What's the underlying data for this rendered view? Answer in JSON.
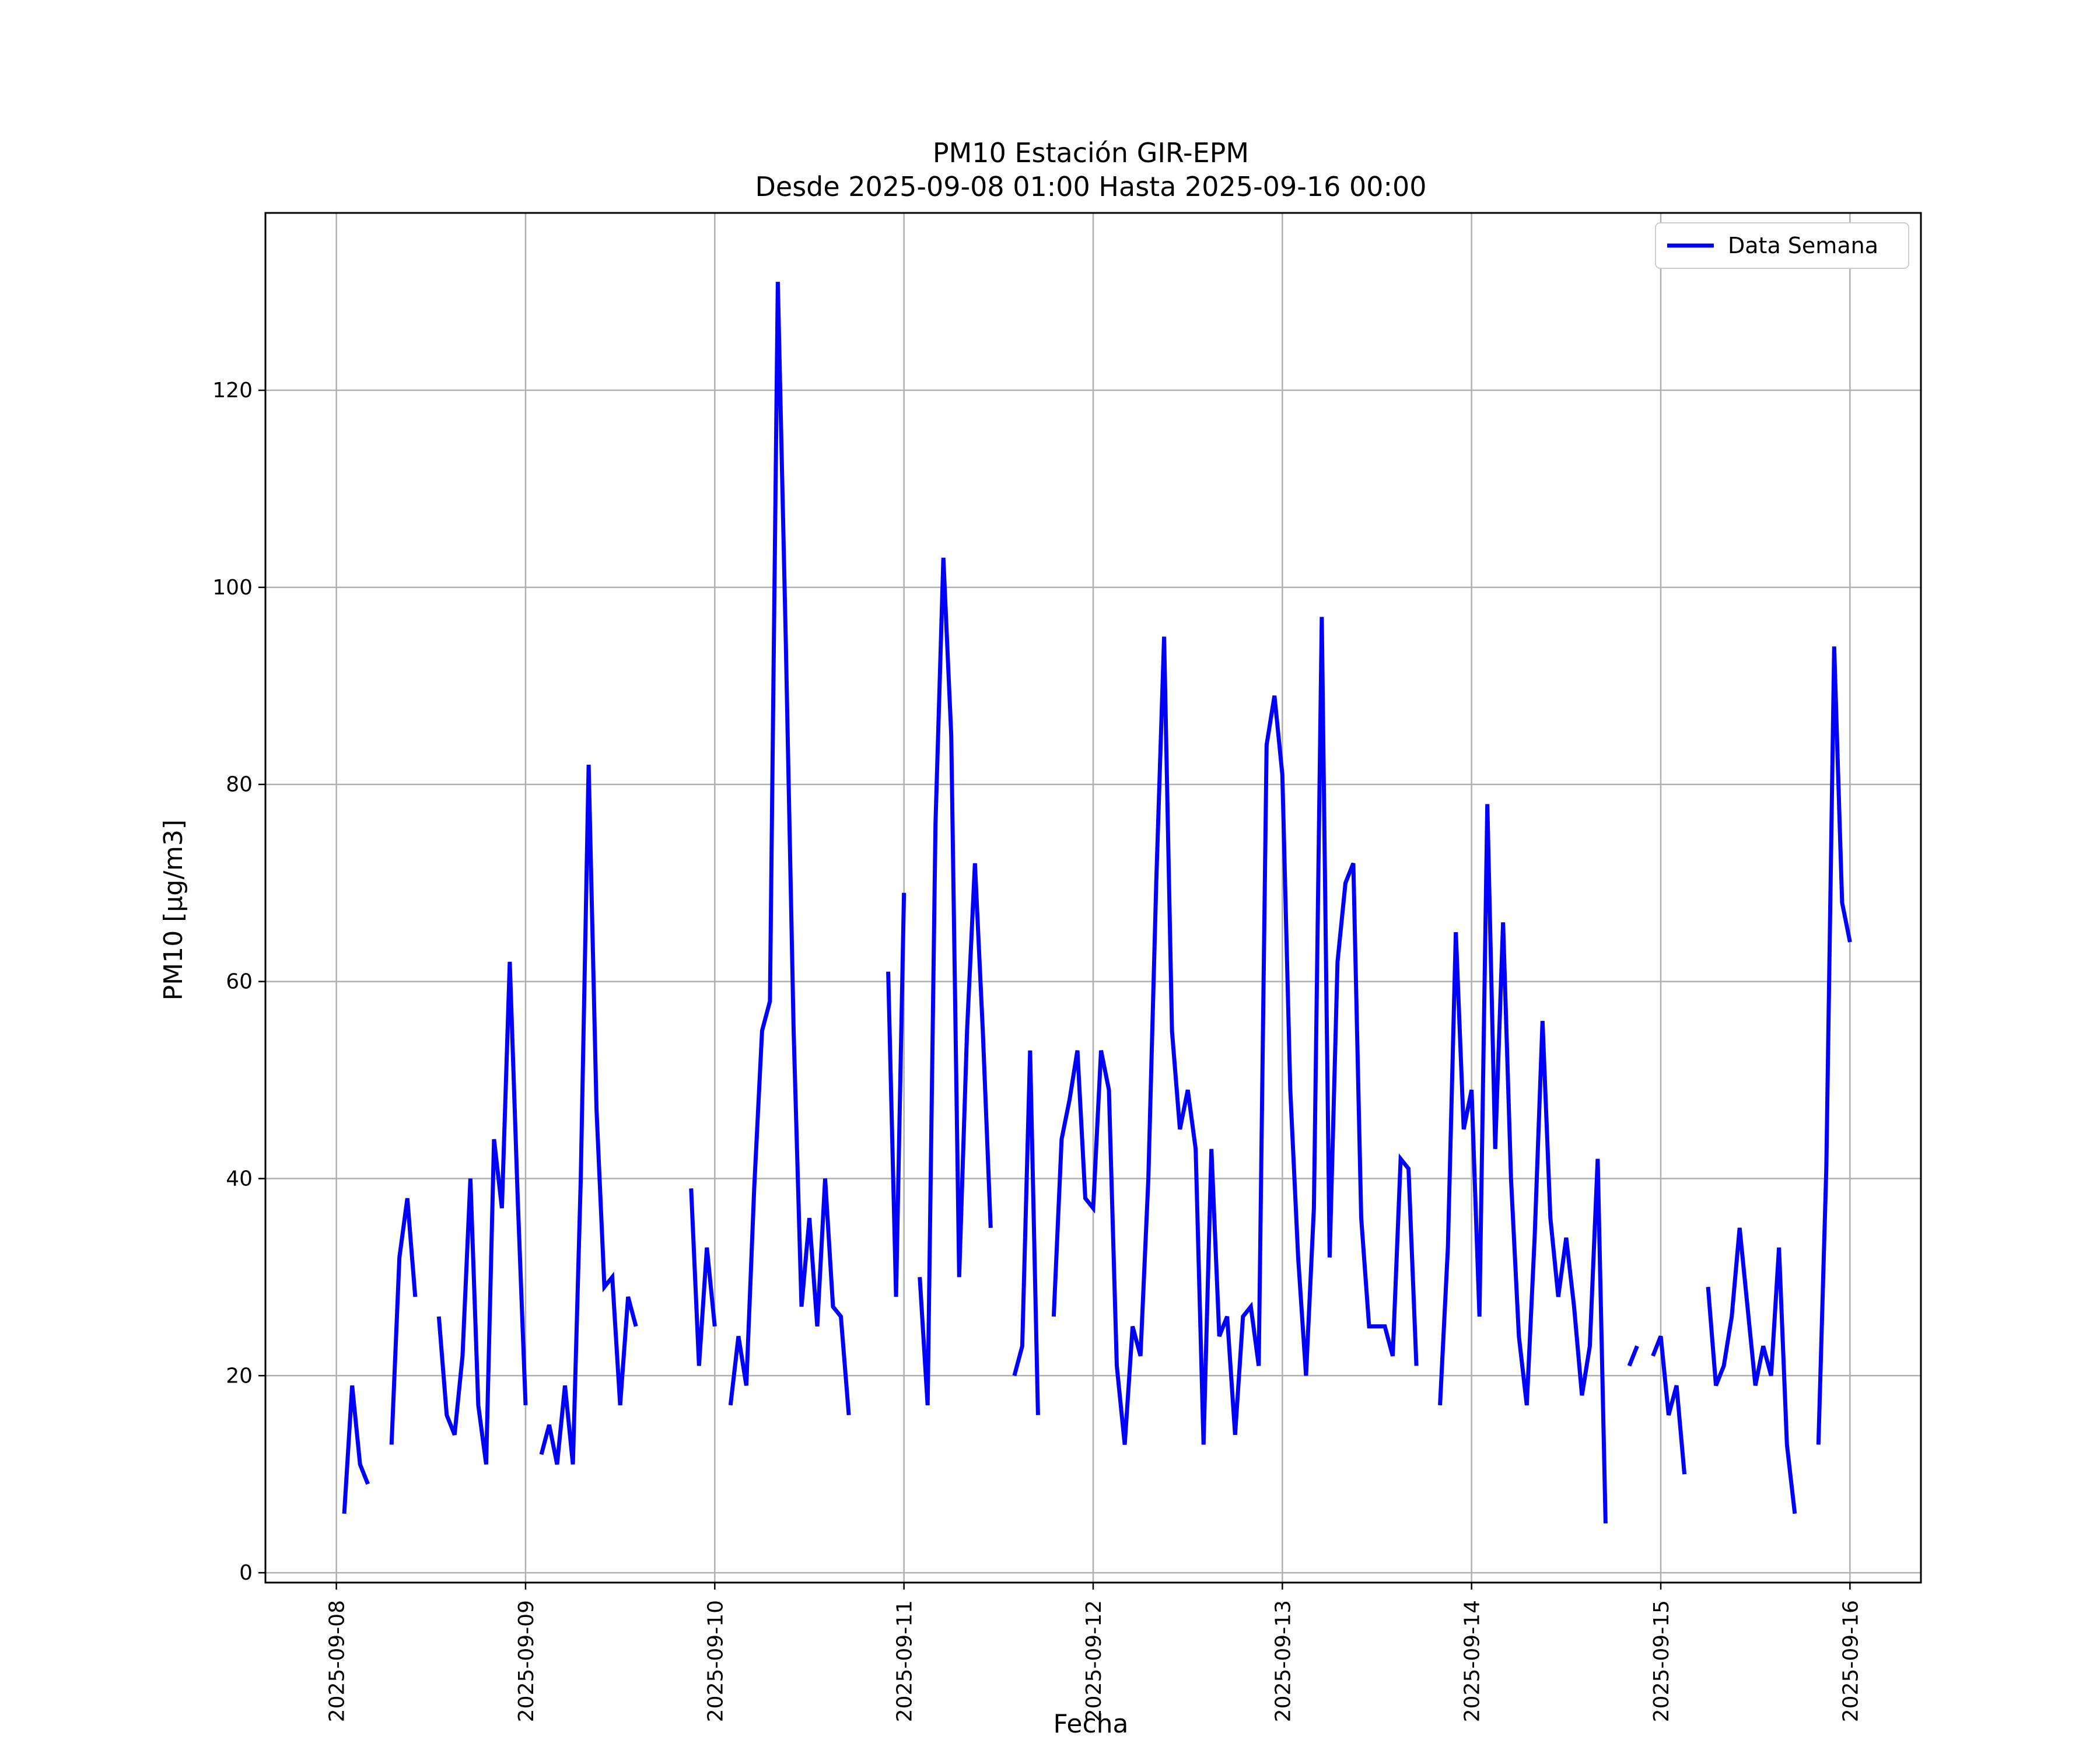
{
  "chart_data": {
    "type": "line",
    "title": "PM10 Estación GIR-EPM",
    "subtitle": "Desde 2025-09-08 01:00 Hasta 2025-09-16 00:00",
    "xlabel": "Fecha",
    "ylabel": "PM10 [μg/m3]",
    "ylim": [
      -1,
      138
    ],
    "xlim": [
      "2025-09-07 15:00",
      "2025-09-16 09:00"
    ],
    "yticks": [
      0,
      20,
      40,
      60,
      80,
      100,
      120
    ],
    "xticks": [
      "2025-09-08",
      "2025-09-09",
      "2025-09-10",
      "2025-09-11",
      "2025-09-12",
      "2025-09-13",
      "2025-09-14",
      "2025-09-15",
      "2025-09-16"
    ],
    "grid": true,
    "legend": "top-right",
    "line_color": "#0000ff",
    "series": [
      {
        "name": "Data Semana",
        "segments": [
          [
            [
              "2025-09-08 01:00",
              6
            ],
            [
              "2025-09-08 02:00",
              19
            ],
            [
              "2025-09-08 03:00",
              11
            ],
            [
              "2025-09-08 04:00",
              9
            ]
          ],
          [
            [
              "2025-09-08 07:00",
              13
            ],
            [
              "2025-09-08 08:00",
              32
            ],
            [
              "2025-09-08 09:00",
              38
            ],
            [
              "2025-09-08 10:00",
              28
            ]
          ],
          [
            [
              "2025-09-08 13:00",
              26
            ],
            [
              "2025-09-08 14:00",
              16
            ],
            [
              "2025-09-08 15:00",
              14
            ],
            [
              "2025-09-08 16:00",
              22
            ],
            [
              "2025-09-08 17:00",
              40
            ],
            [
              "2025-09-08 18:00",
              17
            ],
            [
              "2025-09-08 19:00",
              11
            ],
            [
              "2025-09-08 20:00",
              44
            ],
            [
              "2025-09-08 21:00",
              37
            ],
            [
              "2025-09-08 22:00",
              62
            ],
            [
              "2025-09-08 23:00",
              38
            ],
            [
              "2025-09-09 00:00",
              17
            ]
          ],
          [
            [
              "2025-09-09 02:00",
              12
            ],
            [
              "2025-09-09 03:00",
              15
            ],
            [
              "2025-09-09 04:00",
              11
            ],
            [
              "2025-09-09 05:00",
              19
            ],
            [
              "2025-09-09 06:00",
              11
            ],
            [
              "2025-09-09 07:00",
              40
            ],
            [
              "2025-09-09 08:00",
              82
            ],
            [
              "2025-09-09 09:00",
              47
            ],
            [
              "2025-09-09 10:00",
              29
            ],
            [
              "2025-09-09 11:00",
              30
            ],
            [
              "2025-09-09 12:00",
              17
            ],
            [
              "2025-09-09 13:00",
              28
            ],
            [
              "2025-09-09 14:00",
              25
            ]
          ],
          [
            [
              "2025-09-09 21:00",
              39
            ],
            [
              "2025-09-09 22:00",
              21
            ],
            [
              "2025-09-09 23:00",
              33
            ],
            [
              "2025-09-10 00:00",
              25
            ]
          ],
          [
            [
              "2025-09-10 02:00",
              17
            ],
            [
              "2025-09-10 03:00",
              24
            ],
            [
              "2025-09-10 04:00",
              19
            ],
            [
              "2025-09-10 05:00",
              39
            ],
            [
              "2025-09-10 06:00",
              55
            ],
            [
              "2025-09-10 07:00",
              58
            ],
            [
              "2025-09-10 08:00",
              131
            ],
            [
              "2025-09-10 09:00",
              95
            ],
            [
              "2025-09-10 10:00",
              55
            ],
            [
              "2025-09-10 11:00",
              27
            ],
            [
              "2025-09-10 12:00",
              36
            ],
            [
              "2025-09-10 13:00",
              25
            ],
            [
              "2025-09-10 14:00",
              40
            ],
            [
              "2025-09-10 15:00",
              27
            ],
            [
              "2025-09-10 16:00",
              26
            ],
            [
              "2025-09-10 17:00",
              16
            ]
          ],
          [
            [
              "2025-09-10 22:00",
              61
            ],
            [
              "2025-09-10 23:00",
              28
            ],
            [
              "2025-09-11 00:00",
              69
            ]
          ],
          [
            [
              "2025-09-11 02:00",
              30
            ],
            [
              "2025-09-11 03:00",
              17
            ],
            [
              "2025-09-11 04:00",
              76
            ],
            [
              "2025-09-11 05:00",
              103
            ],
            [
              "2025-09-11 06:00",
              85
            ],
            [
              "2025-09-11 07:00",
              30
            ],
            [
              "2025-09-11 08:00",
              55
            ],
            [
              "2025-09-11 09:00",
              72
            ],
            [
              "2025-09-11 10:00",
              55
            ],
            [
              "2025-09-11 11:00",
              35
            ]
          ],
          [
            [
              "2025-09-11 14:00",
              20
            ],
            [
              "2025-09-11 15:00",
              23
            ],
            [
              "2025-09-11 16:00",
              53
            ],
            [
              "2025-09-11 17:00",
              16
            ]
          ],
          [
            [
              "2025-09-11 19:00",
              26
            ],
            [
              "2025-09-11 20:00",
              44
            ],
            [
              "2025-09-11 21:00",
              48
            ],
            [
              "2025-09-11 22:00",
              53
            ],
            [
              "2025-09-11 23:00",
              38
            ],
            [
              "2025-09-12 00:00",
              37
            ],
            [
              "2025-09-12 01:00",
              53
            ],
            [
              "2025-09-12 02:00",
              49
            ],
            [
              "2025-09-12 03:00",
              21
            ],
            [
              "2025-09-12 04:00",
              13
            ],
            [
              "2025-09-12 05:00",
              25
            ],
            [
              "2025-09-12 06:00",
              22
            ],
            [
              "2025-09-12 07:00",
              40
            ],
            [
              "2025-09-12 08:00",
              70
            ],
            [
              "2025-09-12 09:00",
              95
            ],
            [
              "2025-09-12 10:00",
              55
            ],
            [
              "2025-09-12 11:00",
              45
            ],
            [
              "2025-09-12 12:00",
              49
            ],
            [
              "2025-09-12 13:00",
              43
            ],
            [
              "2025-09-12 14:00",
              13
            ],
            [
              "2025-09-12 15:00",
              43
            ],
            [
              "2025-09-12 16:00",
              24
            ],
            [
              "2025-09-12 17:00",
              26
            ],
            [
              "2025-09-12 18:00",
              14
            ],
            [
              "2025-09-12 19:00",
              26
            ],
            [
              "2025-09-12 20:00",
              27
            ],
            [
              "2025-09-12 21:00",
              21
            ],
            [
              "2025-09-12 22:00",
              84
            ],
            [
              "2025-09-12 23:00",
              89
            ],
            [
              "2025-09-13 00:00",
              81
            ],
            [
              "2025-09-13 01:00",
              49
            ],
            [
              "2025-09-13 02:00",
              32
            ],
            [
              "2025-09-13 03:00",
              20
            ],
            [
              "2025-09-13 04:00",
              37
            ],
            [
              "2025-09-13 05:00",
              97
            ],
            [
              "2025-09-13 06:00",
              32
            ],
            [
              "2025-09-13 07:00",
              62
            ],
            [
              "2025-09-13 08:00",
              70
            ],
            [
              "2025-09-13 09:00",
              72
            ],
            [
              "2025-09-13 10:00",
              36
            ],
            [
              "2025-09-13 11:00",
              25
            ],
            [
              "2025-09-13 12:00",
              25
            ],
            [
              "2025-09-13 13:00",
              25
            ],
            [
              "2025-09-13 14:00",
              22
            ],
            [
              "2025-09-13 15:00",
              42
            ],
            [
              "2025-09-13 16:00",
              41
            ],
            [
              "2025-09-13 17:00",
              21
            ]
          ],
          [
            [
              "2025-09-13 20:00",
              17
            ],
            [
              "2025-09-13 21:00",
              33
            ],
            [
              "2025-09-13 22:00",
              65
            ],
            [
              "2025-09-13 23:00",
              45
            ],
            [
              "2025-09-14 00:00",
              49
            ],
            [
              "2025-09-14 01:00",
              26
            ],
            [
              "2025-09-14 02:00",
              78
            ],
            [
              "2025-09-14 03:00",
              43
            ],
            [
              "2025-09-14 04:00",
              66
            ],
            [
              "2025-09-14 05:00",
              40
            ],
            [
              "2025-09-14 06:00",
              24
            ],
            [
              "2025-09-14 07:00",
              17
            ],
            [
              "2025-09-14 08:00",
              34
            ],
            [
              "2025-09-14 09:00",
              56
            ],
            [
              "2025-09-14 10:00",
              36
            ],
            [
              "2025-09-14 11:00",
              28
            ],
            [
              "2025-09-14 12:00",
              34
            ],
            [
              "2025-09-14 13:00",
              27
            ],
            [
              "2025-09-14 14:00",
              18
            ],
            [
              "2025-09-14 15:00",
              23
            ],
            [
              "2025-09-14 16:00",
              42
            ],
            [
              "2025-09-14 17:00",
              5
            ]
          ],
          [
            [
              "2025-09-14 20:00",
              21
            ],
            [
              "2025-09-14 21:00",
              23
            ]
          ],
          [
            [
              "2025-09-14 23:00",
              22
            ],
            [
              "2025-09-15 00:00",
              24
            ],
            [
              "2025-09-15 01:00",
              16
            ],
            [
              "2025-09-15 02:00",
              19
            ],
            [
              "2025-09-15 03:00",
              10
            ]
          ],
          [
            [
              "2025-09-15 06:00",
              29
            ],
            [
              "2025-09-15 07:00",
              19
            ],
            [
              "2025-09-15 08:00",
              21
            ],
            [
              "2025-09-15 09:00",
              26
            ],
            [
              "2025-09-15 10:00",
              35
            ],
            [
              "2025-09-15 11:00",
              27
            ],
            [
              "2025-09-15 12:00",
              19
            ],
            [
              "2025-09-15 13:00",
              23
            ],
            [
              "2025-09-15 14:00",
              20
            ],
            [
              "2025-09-15 15:00",
              33
            ],
            [
              "2025-09-15 16:00",
              13
            ],
            [
              "2025-09-15 17:00",
              6
            ]
          ],
          [
            [
              "2025-09-15 20:00",
              13
            ],
            [
              "2025-09-15 21:00",
              41
            ],
            [
              "2025-09-15 22:00",
              94
            ],
            [
              "2025-09-15 23:00",
              68
            ],
            [
              "2025-09-16 00:00",
              64
            ]
          ]
        ]
      }
    ]
  }
}
